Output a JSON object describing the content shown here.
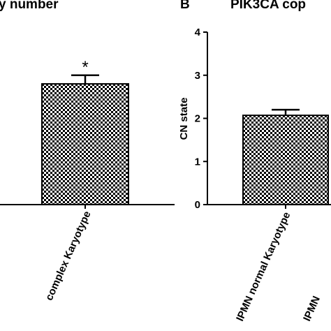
{
  "chart_data": [
    {
      "type": "bar",
      "title": "y number",
      "categories": [
        "complex Karyotype"
      ],
      "values": [
        2.8
      ],
      "errors": [
        0.2
      ],
      "annotations": [
        "*"
      ],
      "color": "#000000",
      "ylim": [
        0,
        4
      ]
    },
    {
      "type": "bar",
      "panel_label": "B",
      "title": "PIK3CA cop",
      "y_label": "CN state",
      "categories": [
        "IPMN normal Karyotype",
        "IPMN"
      ],
      "values": [
        2.07,
        null
      ],
      "errors": [
        0.13,
        null
      ],
      "color": "#000000",
      "ylim": [
        0,
        4
      ],
      "yticks": [
        0,
        1,
        2,
        3,
        4
      ]
    }
  ]
}
